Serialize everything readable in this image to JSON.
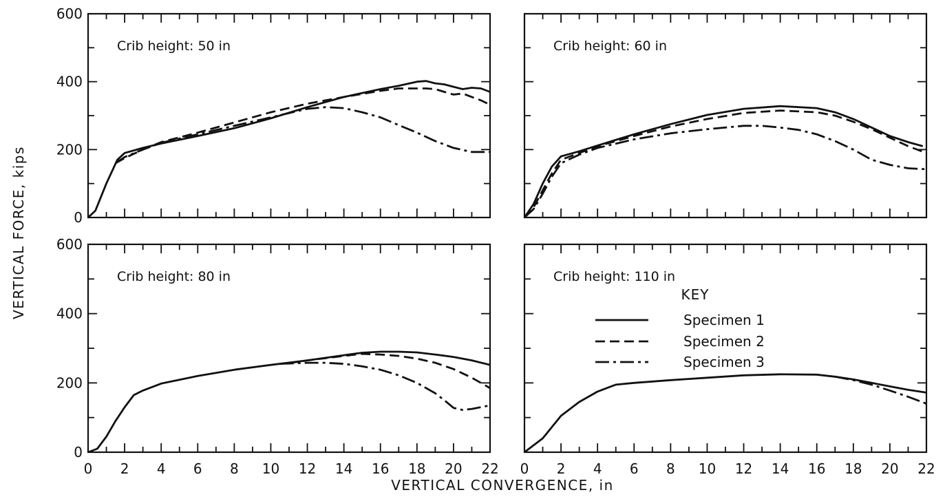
{
  "figure": {
    "ylabel": "VERTICAL FORCE, kips",
    "xlabel": "VERTICAL CONVERGENCE, in",
    "key": {
      "title": "KEY",
      "entries": [
        "Specimen 1",
        "Specimen 2",
        "Specimen 3"
      ]
    }
  },
  "chart_data": [
    {
      "type": "line",
      "title": "Crib height: 50 in",
      "xlim": [
        0,
        22
      ],
      "ylim": [
        0,
        600
      ],
      "x_ticks": [],
      "y_ticks": [
        "0",
        "200",
        "400",
        "600"
      ],
      "series": [
        {
          "name": "Specimen 1",
          "dash": "solid",
          "points": [
            [
              0,
              0
            ],
            [
              0.4,
              20
            ],
            [
              1,
              100
            ],
            [
              1.6,
              170
            ],
            [
              2,
              190
            ],
            [
              3,
              205
            ],
            [
              4,
              218
            ],
            [
              6,
              240
            ],
            [
              8,
              263
            ],
            [
              10,
              292
            ],
            [
              12,
              325
            ],
            [
              14,
              355
            ],
            [
              16,
              378
            ],
            [
              17,
              388
            ],
            [
              18,
              400
            ],
            [
              18.5,
              402
            ],
            [
              19,
              395
            ],
            [
              19.5,
              392
            ],
            [
              20,
              385
            ],
            [
              20.5,
              378
            ],
            [
              21,
              382
            ],
            [
              21.5,
              380
            ],
            [
              22,
              370
            ]
          ]
        },
        {
          "name": "Specimen 2",
          "dash": "dashed",
          "points": [
            [
              1.5,
              160
            ],
            [
              2,
              175
            ],
            [
              3,
              200
            ],
            [
              4,
              222
            ],
            [
              6,
              250
            ],
            [
              8,
              280
            ],
            [
              10,
              310
            ],
            [
              12,
              335
            ],
            [
              14,
              355
            ],
            [
              16,
              373
            ],
            [
              17,
              380
            ],
            [
              18,
              380
            ],
            [
              18.5,
              380
            ],
            [
              19,
              378
            ],
            [
              19.5,
              370
            ],
            [
              20,
              362
            ],
            [
              20.5,
              365
            ],
            [
              21,
              355
            ],
            [
              21.5,
              345
            ],
            [
              22,
              332
            ]
          ]
        },
        {
          "name": "Specimen 3",
          "dash": "dashdot",
          "points": [
            [
              1.5,
              160
            ],
            [
              2,
              178
            ],
            [
              3,
              200
            ],
            [
              4,
              220
            ],
            [
              6,
              245
            ],
            [
              8,
              270
            ],
            [
              10,
              295
            ],
            [
              12,
              320
            ],
            [
              13,
              325
            ],
            [
              14,
              322
            ],
            [
              15,
              310
            ],
            [
              16,
              295
            ],
            [
              17,
              272
            ],
            [
              18,
              250
            ],
            [
              19,
              225
            ],
            [
              20,
              205
            ],
            [
              21,
              193
            ],
            [
              22,
              193
            ]
          ]
        }
      ]
    },
    {
      "type": "line",
      "title": "Crib height: 60 in",
      "xlim": [
        0,
        22
      ],
      "ylim": [
        0,
        600
      ],
      "x_ticks": [],
      "y_ticks": [],
      "series": [
        {
          "name": "Specimen 1",
          "dash": "solid",
          "points": [
            [
              0,
              0
            ],
            [
              0.5,
              40
            ],
            [
              1,
              100
            ],
            [
              1.5,
              150
            ],
            [
              2,
              180
            ],
            [
              3,
              195
            ],
            [
              4,
              212
            ],
            [
              6,
              245
            ],
            [
              8,
              275
            ],
            [
              10,
              302
            ],
            [
              12,
              320
            ],
            [
              14,
              328
            ],
            [
              16,
              322
            ],
            [
              17,
              310
            ],
            [
              18,
              290
            ],
            [
              19,
              265
            ],
            [
              20,
              240
            ],
            [
              21,
              222
            ],
            [
              21.8,
              210
            ]
          ]
        },
        {
          "name": "Specimen 2",
          "dash": "dashed",
          "points": [
            [
              0,
              0
            ],
            [
              0.5,
              30
            ],
            [
              1,
              80
            ],
            [
              1.5,
              130
            ],
            [
              2,
              170
            ],
            [
              3,
              190
            ],
            [
              4,
              210
            ],
            [
              6,
              240
            ],
            [
              8,
              268
            ],
            [
              10,
              290
            ],
            [
              12,
              308
            ],
            [
              14,
              315
            ],
            [
              16,
              310
            ],
            [
              17,
              300
            ],
            [
              18,
              282
            ],
            [
              19,
              260
            ],
            [
              20,
              235
            ],
            [
              21,
              210
            ],
            [
              22,
              190
            ]
          ]
        },
        {
          "name": "Specimen 3",
          "dash": "dashdot",
          "points": [
            [
              0,
              0
            ],
            [
              0.5,
              25
            ],
            [
              1,
              70
            ],
            [
              1.5,
              120
            ],
            [
              2,
              160
            ],
            [
              3,
              185
            ],
            [
              4,
              205
            ],
            [
              6,
              230
            ],
            [
              8,
              248
            ],
            [
              10,
              260
            ],
            [
              12,
              270
            ],
            [
              13,
              270
            ],
            [
              14,
              265
            ],
            [
              15,
              258
            ],
            [
              16,
              245
            ],
            [
              17,
              225
            ],
            [
              18,
              200
            ],
            [
              19,
              170
            ],
            [
              20,
              155
            ],
            [
              21,
              145
            ],
            [
              22,
              142
            ]
          ]
        }
      ]
    },
    {
      "type": "line",
      "title": "Crib height: 80 in",
      "xlim": [
        0,
        22
      ],
      "ylim": [
        0,
        600
      ],
      "x_ticks": [
        "0",
        "2",
        "4",
        "6",
        "8",
        "10",
        "12",
        "14",
        "16",
        "18",
        "20",
        "22"
      ],
      "y_ticks": [
        "0",
        "200",
        "400",
        "600"
      ],
      "series": [
        {
          "name": "Specimen 1",
          "dash": "solid",
          "points": [
            [
              0,
              0
            ],
            [
              0.5,
              10
            ],
            [
              1,
              45
            ],
            [
              1.5,
              90
            ],
            [
              2,
              130
            ],
            [
              2.5,
              165
            ],
            [
              3,
              178
            ],
            [
              4,
              198
            ],
            [
              6,
              220
            ],
            [
              8,
              238
            ],
            [
              10,
              252
            ],
            [
              12,
              265
            ],
            [
              14,
              280
            ],
            [
              15,
              287
            ],
            [
              16,
              290
            ],
            [
              17,
              290
            ],
            [
              18,
              288
            ],
            [
              19,
              282
            ],
            [
              20,
              275
            ],
            [
              21,
              265
            ],
            [
              22,
              252
            ]
          ]
        },
        {
          "name": "Specimen 2",
          "dash": "dashed",
          "points": [
            [
              11,
              257
            ],
            [
              12,
              265
            ],
            [
              14,
              278
            ],
            [
              15,
              284
            ],
            [
              16,
              282
            ],
            [
              17,
              278
            ],
            [
              18,
              270
            ],
            [
              19,
              258
            ],
            [
              20,
              240
            ],
            [
              21,
              215
            ],
            [
              22,
              185
            ]
          ]
        },
        {
          "name": "Specimen 3",
          "dash": "dashdot",
          "points": [
            [
              10.5,
              255
            ],
            [
              12,
              258
            ],
            [
              13,
              258
            ],
            [
              14,
              255
            ],
            [
              15,
              248
            ],
            [
              16,
              238
            ],
            [
              17,
              222
            ],
            [
              18,
              200
            ],
            [
              19,
              170
            ],
            [
              19.5,
              150
            ],
            [
              20,
              128
            ],
            [
              20.5,
              122
            ],
            [
              21,
              125
            ],
            [
              22,
              135
            ]
          ]
        }
      ]
    },
    {
      "type": "line",
      "title": "Crib height: 110 in",
      "xlim": [
        0,
        22
      ],
      "ylim": [
        0,
        600
      ],
      "x_ticks": [
        "0",
        "2",
        "4",
        "6",
        "8",
        "10",
        "12",
        "14",
        "16",
        "18",
        "20",
        "22"
      ],
      "y_ticks": [],
      "series": [
        {
          "name": "Specimen 1",
          "dash": "solid",
          "points": [
            [
              0,
              0
            ],
            [
              1,
              40
            ],
            [
              2,
              105
            ],
            [
              3,
              145
            ],
            [
              4,
              175
            ],
            [
              5,
              195
            ],
            [
              6,
              200
            ],
            [
              8,
              208
            ],
            [
              10,
              215
            ],
            [
              12,
              222
            ],
            [
              14,
              225
            ],
            [
              16,
              224
            ],
            [
              17,
              218
            ],
            [
              18,
              210
            ],
            [
              19,
              200
            ],
            [
              20,
              190
            ],
            [
              21,
              180
            ],
            [
              22,
              172
            ]
          ]
        },
        {
          "name": "Specimen 3",
          "dash": "dashdot",
          "points": [
            [
              17,
              218
            ],
            [
              18,
              208
            ],
            [
              19,
              195
            ],
            [
              20,
              178
            ],
            [
              21,
              160
            ],
            [
              22,
              140
            ]
          ]
        }
      ]
    }
  ]
}
